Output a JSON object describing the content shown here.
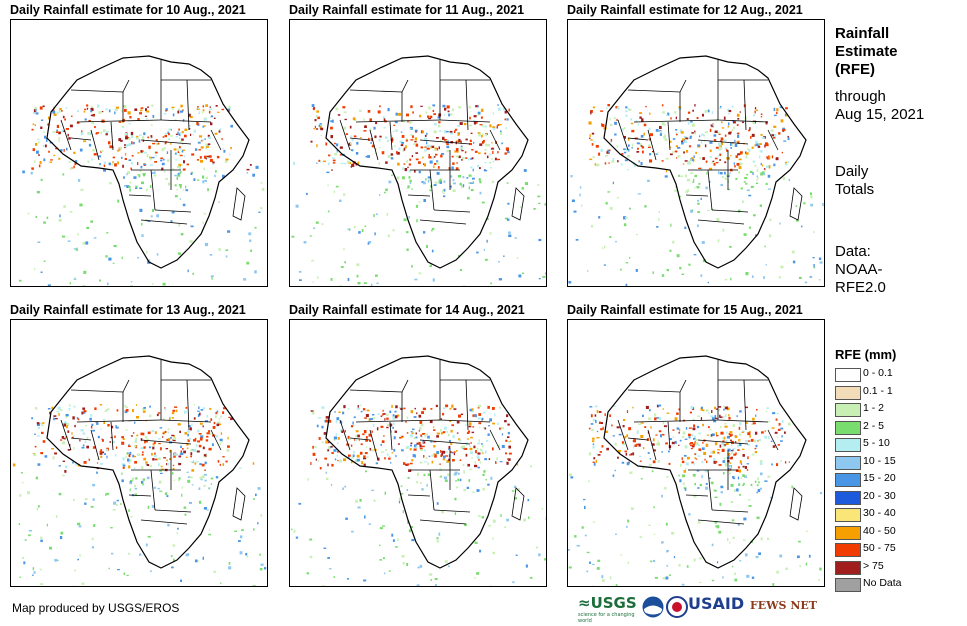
{
  "panels": [
    {
      "title": "Daily Rainfall estimate for 10 Aug., 2021"
    },
    {
      "title": "Daily Rainfall estimate for 11 Aug., 2021"
    },
    {
      "title": "Daily Rainfall estimate for 12 Aug., 2021"
    },
    {
      "title": "Daily Rainfall estimate for 13 Aug., 2021"
    },
    {
      "title": "Daily Rainfall estimate for 14 Aug., 2021"
    },
    {
      "title": "Daily Rainfall estimate for 15 Aug., 2021"
    }
  ],
  "sidebar": {
    "title_line1": "Rainfall",
    "title_line2": "Estimate",
    "title_line3": "(RFE)",
    "through_line1": "through",
    "through_line2": "Aug 15, 2021",
    "daily_line1": "Daily",
    "daily_line2": "Totals",
    "data_line1": "Data:",
    "data_line2": "NOAA-",
    "data_line3": "RFE2.0"
  },
  "legend": {
    "title": "RFE (mm)",
    "items": [
      {
        "label": "0 - 0.1",
        "color": "#ffffff"
      },
      {
        "label": "0.1 - 1",
        "color": "#f3dcb8"
      },
      {
        "label": "1 - 2",
        "color": "#c8f0b4"
      },
      {
        "label": "2 - 5",
        "color": "#78dc6e"
      },
      {
        "label": "5 - 10",
        "color": "#b4eef0"
      },
      {
        "label": "10 - 15",
        "color": "#8ec8f0"
      },
      {
        "label": "15 - 20",
        "color": "#4a96e6"
      },
      {
        "label": "20 - 30",
        "color": "#1e5adc"
      },
      {
        "label": "30 - 40",
        "color": "#fae678"
      },
      {
        "label": "40 - 50",
        "color": "#f5a000"
      },
      {
        "label": "50 - 75",
        "color": "#f03c00"
      },
      {
        "label": "> 75",
        "color": "#a01e1e"
      },
      {
        "label": "No Data",
        "color": "#a0a0a0"
      }
    ]
  },
  "footer": {
    "credit": "Map produced by USGS/EROS",
    "logo_usgs": "≈USGS",
    "logo_usgs_tag": "science for a changing world",
    "logo_usaid": "USAID",
    "logo_fews": "FEWS NET"
  }
}
